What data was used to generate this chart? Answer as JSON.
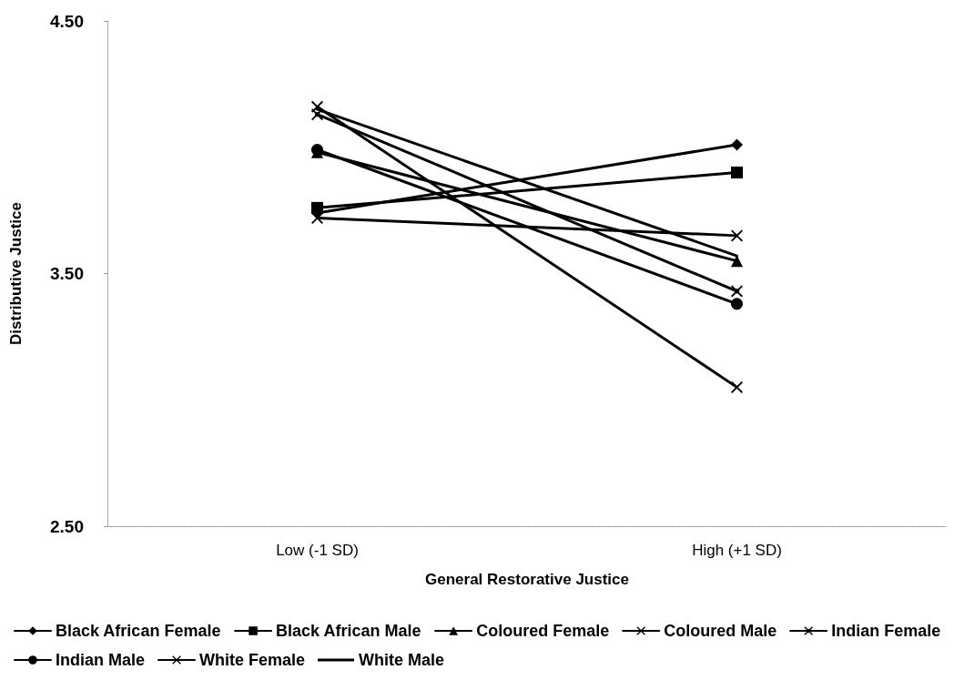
{
  "chart_data": {
    "type": "line",
    "xlabel": "General Restorative Justice",
    "ylabel": "Distributive Justice",
    "categories": [
      "Low (-1 SD)",
      "High (+1 SD)"
    ],
    "ylim": [
      2.5,
      4.5
    ],
    "yticks": [
      {
        "value": 2.5,
        "label": "2.50"
      },
      {
        "value": 3.5,
        "label": "3.50"
      },
      {
        "value": 4.5,
        "label": "4.50"
      }
    ],
    "grid": false,
    "legend": "bottom",
    "line_style": "solid",
    "series": [
      {
        "name": "Black African Female",
        "color": "#000000",
        "marker": "diamond",
        "values": [
          3.74,
          4.01
        ]
      },
      {
        "name": "Black African Male",
        "color": "#000000",
        "marker": "square",
        "values": [
          3.76,
          3.9
        ]
      },
      {
        "name": "Coloured Female",
        "color": "#000000",
        "marker": "triangle",
        "values": [
          3.98,
          3.55
        ]
      },
      {
        "name": "Coloured Male",
        "color": "#000000",
        "marker": "cross",
        "values": [
          3.72,
          3.65
        ]
      },
      {
        "name": "Indian Female",
        "color": "#000000",
        "marker": "star",
        "values": [
          4.13,
          3.43
        ]
      },
      {
        "name": "Indian Male",
        "color": "#000000",
        "marker": "circle",
        "values": [
          3.99,
          3.38
        ]
      },
      {
        "name": "White Female",
        "color": "#000000",
        "marker": "cross",
        "values": [
          4.16,
          3.05
        ]
      },
      {
        "name": "White Male",
        "color": "#000000",
        "marker": "none",
        "values": [
          4.15,
          3.57
        ]
      }
    ]
  }
}
